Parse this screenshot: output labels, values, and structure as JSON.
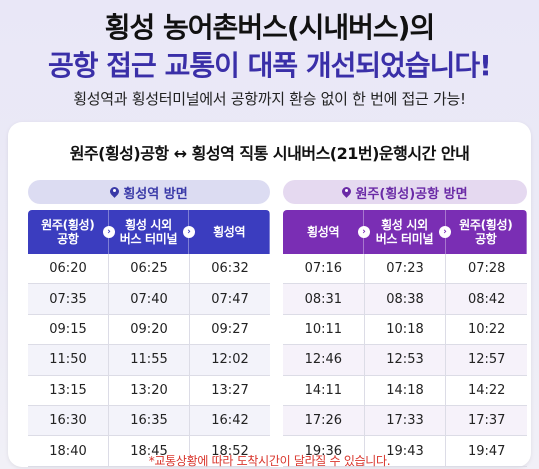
{
  "headline": {
    "line1": "횡성 농어촌버스(시내버스)의",
    "line2": "공항 접근 교통이 대폭 개선되었습니다!",
    "subtitle": "횡성역과 횡성터미널에서 공항까지 환승 없이 한 번에 접근 가능!"
  },
  "card": {
    "title": "원주(횡성)공항 ↔ 횡성역 직통 시내버스(21번)운행시간 안내"
  },
  "left": {
    "direction": "횡성역 방면",
    "headers": [
      "원주(횡성)\n공항",
      "횡성 시외\n버스 터미널",
      "횡성역"
    ],
    "rows": [
      [
        "06:20",
        "06:25",
        "06:32"
      ],
      [
        "07:35",
        "07:40",
        "07:47"
      ],
      [
        "09:15",
        "09:20",
        "09:27"
      ],
      [
        "11:50",
        "11:55",
        "12:02"
      ],
      [
        "13:15",
        "13:20",
        "13:27"
      ],
      [
        "16:30",
        "16:35",
        "16:42"
      ],
      [
        "18:40",
        "18:45",
        "18:52"
      ]
    ]
  },
  "right": {
    "direction": "원주(횡성)공항 방면",
    "headers": [
      "횡성역",
      "횡성 시외\n버스 터미널",
      "원주(횡성)\n공항"
    ],
    "rows": [
      [
        "07:16",
        "07:23",
        "07:28"
      ],
      [
        "08:31",
        "08:38",
        "08:42"
      ],
      [
        "10:11",
        "10:18",
        "10:22"
      ],
      [
        "12:46",
        "12:53",
        "12:57"
      ],
      [
        "14:11",
        "14:18",
        "14:22"
      ],
      [
        "17:26",
        "17:33",
        "17:37"
      ],
      [
        "19:36",
        "19:43",
        "19:47"
      ]
    ]
  },
  "note": "*교통상황에 따라 도착시간이 달라질 수 있습니다.",
  "colors": {
    "left_accent": "#3b3dbf",
    "right_accent": "#7a2eb4",
    "headline_blue": "#3a2fa8",
    "note_red": "#d9352c"
  },
  "icons": {
    "direction_marker": "location-pin-icon",
    "header_separator": "chevron-right-icon"
  }
}
